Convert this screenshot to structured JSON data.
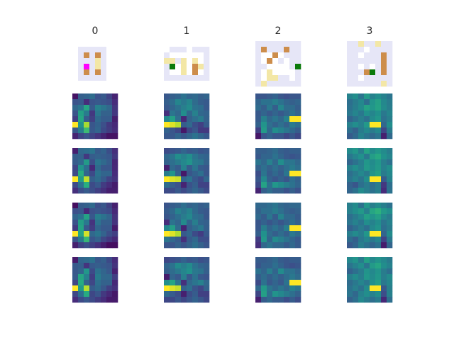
{
  "chart_data": {
    "type": "heatmap",
    "columns": [
      "0",
      "1",
      "2",
      "3"
    ],
    "grid_size": [
      8,
      8
    ],
    "rows": 5,
    "row0_kind": "maps",
    "rows_1_4_kind": "heatmaps",
    "map_palette": {
      "0": "#ffffff",
      "1": "#e6e6f7",
      "2": "#f3e7a6",
      "3": "#cd8d4b",
      "4": "#0b7a0b",
      "5": "#ff00ff"
    },
    "maps": [
      [
        [
          0,
          0,
          0,
          0,
          0,
          0,
          0,
          0
        ],
        [
          0,
          1,
          1,
          1,
          1,
          1,
          0,
          0
        ],
        [
          0,
          1,
          3,
          1,
          3,
          1,
          0,
          0
        ],
        [
          0,
          1,
          1,
          1,
          2,
          1,
          0,
          0
        ],
        [
          0,
          1,
          5,
          1,
          2,
          1,
          0,
          0
        ],
        [
          0,
          1,
          3,
          1,
          3,
          1,
          0,
          0
        ],
        [
          0,
          1,
          1,
          1,
          1,
          1,
          0,
          0
        ],
        [
          0,
          0,
          0,
          0,
          0,
          0,
          0,
          0
        ]
      ],
      [
        [
          0,
          0,
          0,
          0,
          0,
          0,
          0,
          0
        ],
        [
          0,
          1,
          1,
          1,
          0,
          1,
          1,
          1
        ],
        [
          1,
          0,
          0,
          0,
          0,
          0,
          0,
          1
        ],
        [
          2,
          2,
          1,
          2,
          0,
          2,
          0,
          1
        ],
        [
          1,
          4,
          0,
          2,
          0,
          3,
          2,
          1
        ],
        [
          1,
          0,
          0,
          2,
          0,
          3,
          0,
          1
        ],
        [
          1,
          1,
          1,
          1,
          1,
          1,
          1,
          1
        ],
        [
          0,
          0,
          0,
          0,
          0,
          0,
          0,
          0
        ]
      ],
      [
        [
          1,
          1,
          1,
          1,
          1,
          1,
          1,
          1
        ],
        [
          1,
          3,
          1,
          1,
          1,
          3,
          1,
          1
        ],
        [
          1,
          0,
          0,
          3,
          0,
          1,
          1,
          1
        ],
        [
          1,
          0,
          3,
          0,
          1,
          0,
          1,
          1
        ],
        [
          1,
          1,
          0,
          0,
          0,
          0,
          1,
          4
        ],
        [
          1,
          0,
          2,
          0,
          0,
          0,
          0,
          1
        ],
        [
          1,
          0,
          2,
          2,
          1,
          1,
          0,
          1
        ],
        [
          1,
          2,
          1,
          1,
          1,
          1,
          1,
          1
        ]
      ],
      [
        [
          1,
          1,
          2,
          1,
          1,
          2,
          1,
          1
        ],
        [
          1,
          1,
          1,
          0,
          1,
          1,
          1,
          1
        ],
        [
          1,
          1,
          0,
          1,
          1,
          1,
          3,
          1
        ],
        [
          1,
          1,
          1,
          1,
          1,
          1,
          3,
          1
        ],
        [
          1,
          1,
          0,
          1,
          0,
          1,
          3,
          1
        ],
        [
          1,
          1,
          1,
          3,
          4,
          1,
          3,
          1
        ],
        [
          1,
          1,
          0,
          1,
          1,
          1,
          1,
          1
        ],
        [
          1,
          1,
          1,
          1,
          1,
          1,
          2,
          1
        ]
      ]
    ],
    "heat_colormap": [
      "#440154",
      "#472d7b",
      "#3b528b",
      "#2c728e",
      "#21918c",
      "#28ae80",
      "#5ec962",
      "#addc30",
      "#fde725"
    ],
    "heat_value_range": [
      0,
      1
    ],
    "heatmaps": [
      [
        [
          0.05,
          0.3,
          0.32,
          0.35,
          0.25,
          0.28,
          0.2,
          0.1
        ],
        [
          0.28,
          0.3,
          0.15,
          0.28,
          0.3,
          0.28,
          0.26,
          0.15
        ],
        [
          0.3,
          0.35,
          0.55,
          0.25,
          0.4,
          0.35,
          0.3,
          0.12
        ],
        [
          0.25,
          0.55,
          0.4,
          0.15,
          0.38,
          0.3,
          0.3,
          0.15
        ],
        [
          0.2,
          0.6,
          0.3,
          0.2,
          0.35,
          0.3,
          0.3,
          0.1
        ],
        [
          1.0,
          0.55,
          0.9,
          0.3,
          0.35,
          0.28,
          0.2,
          0.15
        ],
        [
          0.25,
          0.4,
          0.65,
          0.25,
          0.3,
          0.2,
          0.15,
          0.1
        ],
        [
          0.1,
          0.2,
          0.25,
          0.2,
          0.15,
          0.1,
          0.05,
          0.05
        ]
      ],
      [
        [
          0.25,
          0.28,
          0.3,
          0.35,
          0.3,
          0.32,
          0.28,
          0.3
        ],
        [
          0.3,
          0.35,
          0.45,
          0.4,
          0.45,
          0.35,
          0.3,
          0.28
        ],
        [
          0.3,
          0.35,
          0.4,
          0.45,
          0.5,
          0.4,
          0.38,
          0.3
        ],
        [
          0.1,
          0.35,
          0.3,
          0.45,
          0.3,
          0.4,
          0.3,
          0.28
        ],
        [
          0.45,
          0.55,
          0.35,
          0.1,
          0.3,
          0.35,
          0.4,
          0.3
        ],
        [
          1.0,
          0.95,
          0.9,
          0.3,
          0.35,
          0.25,
          0.2,
          0.3
        ],
        [
          0.35,
          0.3,
          0.25,
          0.1,
          0.25,
          0.3,
          0.2,
          0.2
        ],
        [
          0.25,
          0.25,
          0.3,
          0.25,
          0.3,
          0.35,
          0.3,
          0.25
        ]
      ],
      [
        [
          0.3,
          0.3,
          0.32,
          0.35,
          0.3,
          0.28,
          0.3,
          0.3
        ],
        [
          0.3,
          0.35,
          0.35,
          0.4,
          0.35,
          0.3,
          0.28,
          0.3
        ],
        [
          0.35,
          0.3,
          0.4,
          0.3,
          0.45,
          0.35,
          0.35,
          0.3
        ],
        [
          0.3,
          0.35,
          0.3,
          0.35,
          0.3,
          0.35,
          0.4,
          0.35
        ],
        [
          0.25,
          0.4,
          0.3,
          0.35,
          0.3,
          0.4,
          1.0,
          1.0
        ],
        [
          0.3,
          0.5,
          0.35,
          0.3,
          0.35,
          0.3,
          0.4,
          0.35
        ],
        [
          0.2,
          0.55,
          0.35,
          0.5,
          0.45,
          0.4,
          0.35,
          0.3
        ],
        [
          0.1,
          0.3,
          0.35,
          0.3,
          0.3,
          0.25,
          0.3,
          0.25
        ]
      ],
      [
        [
          0.45,
          0.5,
          0.4,
          0.55,
          0.45,
          0.5,
          0.45,
          0.4
        ],
        [
          0.4,
          0.45,
          0.5,
          0.4,
          0.55,
          0.6,
          0.5,
          0.45
        ],
        [
          0.35,
          0.4,
          0.45,
          0.55,
          0.5,
          0.55,
          0.45,
          0.4
        ],
        [
          0.4,
          0.45,
          0.4,
          0.5,
          0.45,
          0.5,
          0.4,
          0.45
        ],
        [
          0.35,
          0.4,
          0.45,
          0.4,
          0.5,
          0.55,
          0.4,
          0.45
        ],
        [
          0.4,
          0.45,
          0.4,
          0.5,
          1.0,
          1.0,
          0.3,
          0.45
        ],
        [
          0.35,
          0.3,
          0.4,
          0.45,
          0.4,
          0.45,
          0.2,
          0.4
        ],
        [
          0.3,
          0.35,
          0.45,
          0.4,
          0.35,
          0.4,
          0.1,
          0.35
        ]
      ]
    ]
  }
}
